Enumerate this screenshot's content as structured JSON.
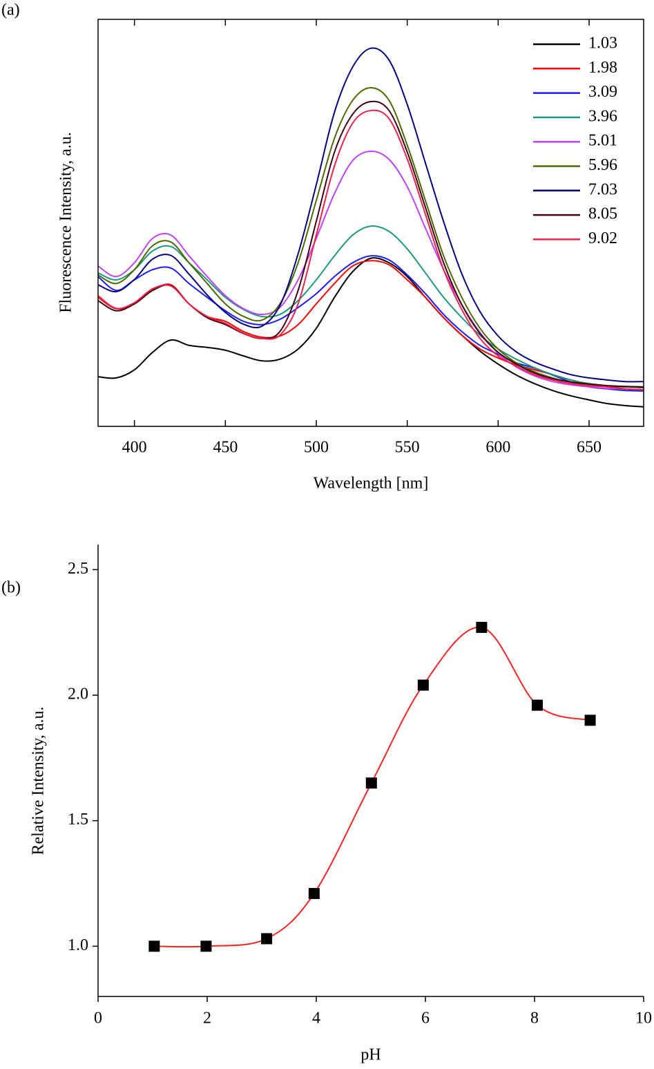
{
  "chart_data": [
    {
      "type": "line",
      "panel_label": "(a)",
      "x_label": "Wavelength [nm]",
      "y_label": "Fluorescence Intensity, a.u.",
      "xlim": [
        380,
        680
      ],
      "xticks": [
        400,
        450,
        500,
        550,
        600,
        650
      ],
      "ylim": [
        0,
        100
      ],
      "legend": "upper right",
      "x": [
        380,
        390,
        400,
        410,
        420,
        430,
        440,
        450,
        460,
        470,
        480,
        490,
        500,
        510,
        520,
        530,
        540,
        550,
        560,
        570,
        580,
        590,
        600,
        610,
        620,
        630,
        640,
        650,
        660,
        670,
        680
      ],
      "series": [
        {
          "name": "1.03",
          "color": "#000000",
          "values": [
            12.2,
            11.9,
            13.9,
            18.2,
            21.2,
            19.9,
            19.4,
            18.7,
            17.3,
            16.1,
            16.5,
            19.0,
            24.1,
            31.7,
            38.0,
            41.3,
            40.2,
            36.8,
            31.7,
            26.7,
            22.4,
            18.5,
            15.3,
            12.6,
            10.5,
            8.8,
            7.5,
            6.5,
            5.6,
            5.1,
            4.8
          ]
        },
        {
          "name": "1.98",
          "color": "#ff0000",
          "values": [
            31.7,
            28.9,
            30.1,
            33.4,
            34.8,
            30.1,
            27.0,
            25.8,
            23.3,
            21.9,
            22.2,
            25.0,
            30.1,
            35.1,
            39.4,
            40.7,
            39.7,
            36.0,
            31.7,
            26.7,
            22.4,
            19.0,
            16.8,
            15.1,
            13.9,
            12.7,
            11.4,
            10.4,
            9.7,
            9.2,
            8.8
          ]
        },
        {
          "name": "3.09",
          "color": "#1a1aff",
          "values": [
            36.8,
            33.4,
            36.0,
            38.5,
            38.9,
            35.1,
            31.7,
            28.4,
            25.8,
            25.0,
            26.3,
            29.2,
            32.6,
            36.8,
            40.2,
            41.9,
            40.9,
            37.2,
            32.6,
            27.5,
            23.3,
            19.9,
            17.7,
            15.6,
            14.3,
            12.6,
            10.9,
            9.7,
            9.2,
            8.8,
            8.7
          ]
        },
        {
          "name": "3.96",
          "color": "#1a9a7a",
          "values": [
            37.7,
            36.0,
            38.5,
            43.1,
            44.2,
            40.2,
            36.0,
            31.7,
            28.7,
            27.0,
            27.5,
            30.9,
            36.0,
            41.9,
            47.0,
            49.2,
            47.9,
            43.6,
            37.7,
            31.7,
            26.7,
            22.4,
            19.0,
            16.5,
            14.4,
            12.7,
            11.4,
            10.5,
            10.0,
            9.7,
            9.5
          ]
        },
        {
          "name": "5.01",
          "color": "#c040ff",
          "values": [
            39.4,
            36.8,
            40.2,
            46.2,
            47.0,
            41.9,
            36.8,
            32.1,
            28.9,
            27.5,
            29.2,
            36.0,
            46.2,
            57.2,
            65.3,
            67.6,
            65.6,
            58.9,
            48.7,
            38.5,
            29.9,
            23.1,
            18.0,
            14.6,
            12.4,
            11.0,
            10.2,
            9.7,
            9.3,
            9.2,
            9.0
          ]
        },
        {
          "name": "5.96",
          "color": "#4b6b00",
          "values": [
            37.2,
            35.1,
            38.5,
            44.4,
            45.3,
            40.2,
            35.1,
            30.1,
            27.0,
            26.1,
            30.1,
            40.2,
            55.5,
            70.8,
            80.1,
            83.2,
            80.1,
            69.1,
            55.5,
            41.9,
            31.7,
            24.1,
            19.0,
            15.6,
            13.4,
            11.9,
            10.9,
            10.2,
            9.8,
            9.7,
            9.5
          ]
        },
        {
          "name": "7.03",
          "color": "#000080",
          "values": [
            34.8,
            33.1,
            36.1,
            41.1,
            42.0,
            37.4,
            32.3,
            28.0,
            25.1,
            24.6,
            29.7,
            42.4,
            59.4,
            77.2,
            88.3,
            92.9,
            90.0,
            79.1,
            64.7,
            50.3,
            37.5,
            28.2,
            22.2,
            18.3,
            15.8,
            14.1,
            12.7,
            11.9,
            11.4,
            11.0,
            11.0
          ]
        },
        {
          "name": "8.05",
          "color": "#400010",
          "values": [
            30.9,
            28.4,
            30.1,
            33.4,
            34.6,
            30.1,
            26.7,
            25.0,
            22.8,
            21.6,
            23.3,
            33.4,
            50.4,
            67.4,
            76.7,
            79.8,
            77.6,
            67.4,
            53.8,
            40.2,
            29.9,
            22.8,
            18.2,
            15.3,
            13.1,
            11.7,
            10.9,
            10.4,
            10.0,
            9.8,
            9.7
          ]
        },
        {
          "name": "9.02",
          "color": "#f0204a",
          "values": [
            32.1,
            29.0,
            30.4,
            33.8,
            34.5,
            30.1,
            27.0,
            25.3,
            22.9,
            21.6,
            22.4,
            30.1,
            47.0,
            64.0,
            74.5,
            77.6,
            75.6,
            65.7,
            52.1,
            38.5,
            28.7,
            21.6,
            17.3,
            14.8,
            12.7,
            11.4,
            10.5,
            10.0,
            9.7,
            9.2,
            9.0
          ]
        }
      ]
    },
    {
      "type": "scatter",
      "panel_label": "(b)",
      "x_label": "pH",
      "y_label": "Relative Intensity,  a.u.",
      "xlim": [
        0,
        10
      ],
      "xticks": [
        0,
        2,
        4,
        6,
        8,
        10
      ],
      "ylim": [
        0.8,
        2.6
      ],
      "yticks": [
        {
          "value": 1,
          "label": "1.0"
        },
        1.5,
        {
          "value": 2,
          "label": "2.0"
        },
        2.5
      ],
      "x": [
        1.03,
        1.98,
        3.09,
        3.96,
        5.01,
        5.96,
        7.03,
        8.05,
        9.02
      ],
      "values": [
        1.0,
        1.0,
        1.03,
        1.21,
        1.65,
        2.04,
        2.27,
        1.96,
        1.9
      ],
      "color": "#000000",
      "line_color": "#ff2020"
    }
  ]
}
